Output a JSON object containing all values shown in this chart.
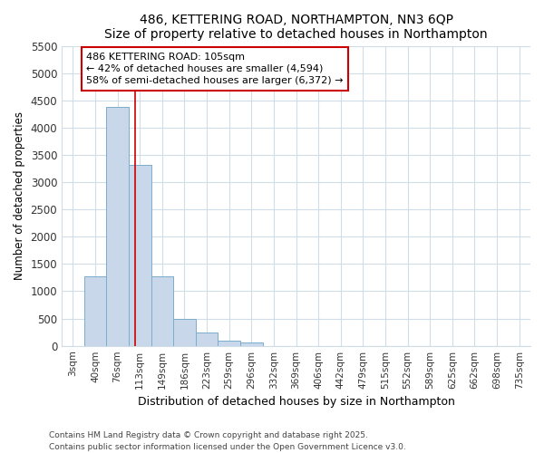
{
  "title": "486, KETTERING ROAD, NORTHAMPTON, NN3 6QP",
  "subtitle": "Size of property relative to detached houses in Northampton",
  "xlabel": "Distribution of detached houses by size in Northampton",
  "ylabel": "Number of detached properties",
  "bar_categories": [
    "3sqm",
    "40sqm",
    "76sqm",
    "113sqm",
    "149sqm",
    "186sqm",
    "223sqm",
    "259sqm",
    "296sqm",
    "332sqm",
    "369sqm",
    "406sqm",
    "442sqm",
    "479sqm",
    "515sqm",
    "552sqm",
    "589sqm",
    "625sqm",
    "662sqm",
    "698sqm",
    "735sqm"
  ],
  "bar_values": [
    0,
    1270,
    4380,
    3320,
    1270,
    500,
    240,
    90,
    55,
    0,
    0,
    0,
    0,
    0,
    0,
    0,
    0,
    0,
    0,
    0,
    0
  ],
  "bar_color": "#c8d8ea",
  "bar_edge_color": "#7aadcc",
  "ylim": [
    0,
    5500
  ],
  "yticks": [
    0,
    500,
    1000,
    1500,
    2000,
    2500,
    3000,
    3500,
    4000,
    4500,
    5000,
    5500
  ],
  "vline_color": "#cc0000",
  "annotation_title": "486 KETTERING ROAD: 105sqm",
  "annotation_line1": "← 42% of detached houses are smaller (4,594)",
  "annotation_line2": "58% of semi-detached houses are larger (6,372) →",
  "annotation_box_color": "#cc0000",
  "footer_line1": "Contains HM Land Registry data © Crown copyright and database right 2025.",
  "footer_line2": "Contains public sector information licensed under the Open Government Licence v3.0.",
  "background_color": "#ffffff",
  "plot_bg_color": "#ffffff",
  "grid_color": "#d0dce8"
}
